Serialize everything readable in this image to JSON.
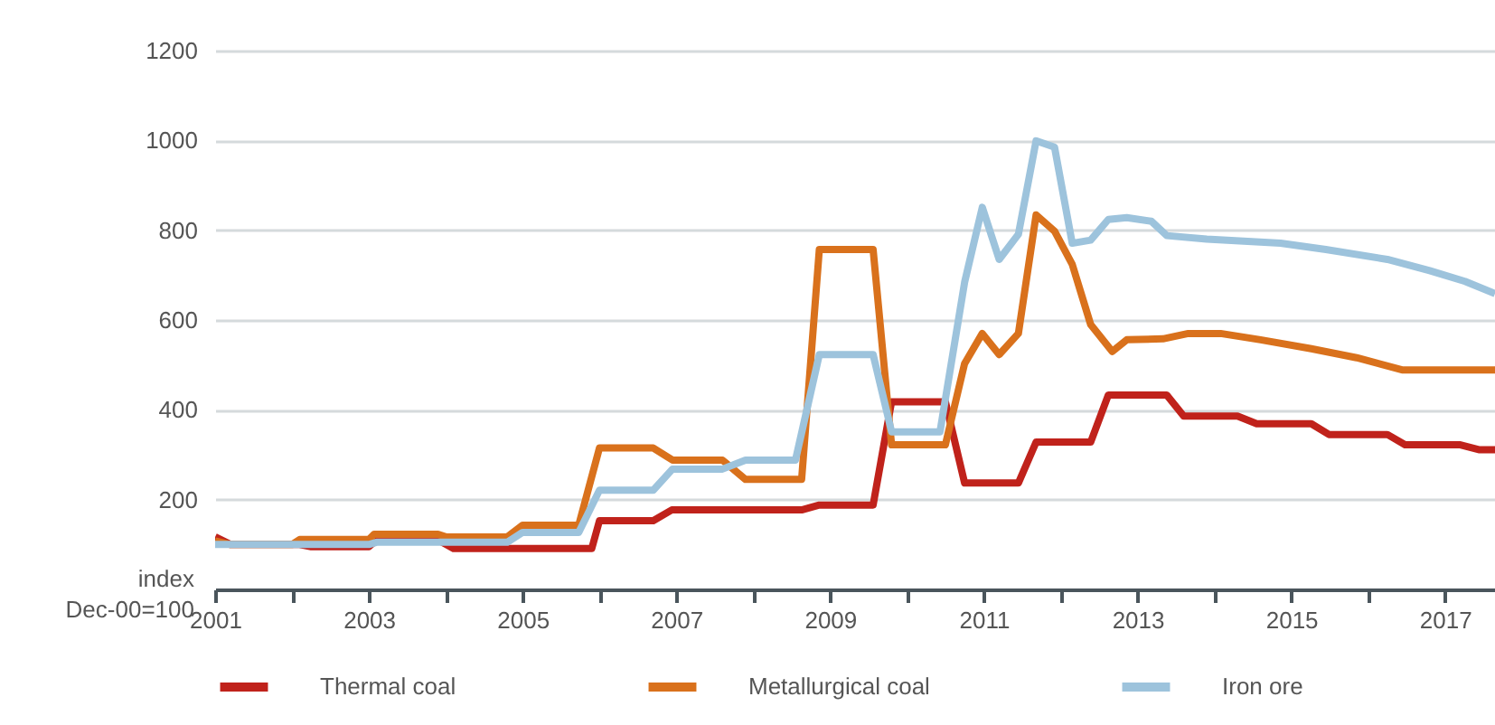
{
  "chart_data": {
    "type": "line",
    "ylabel": "index\nDec-00=100",
    "xlim": [
      2001,
      2017.65
    ],
    "ylim": [
      0,
      1200
    ],
    "xticks": [
      2001,
      {
        "value": 2002,
        "label": null
      },
      2003,
      {
        "value": 2004,
        "label": null
      },
      2005,
      {
        "value": 2006,
        "label": null
      },
      2007,
      {
        "value": 2008,
        "label": null
      },
      2009,
      {
        "value": 2010,
        "label": null
      },
      2011,
      {
        "value": 2012,
        "label": null
      },
      2013,
      {
        "value": 2014,
        "label": null
      },
      2015,
      {
        "value": 2016,
        "label": null
      },
      2017
    ],
    "yticks": [
      200,
      400,
      600,
      800,
      1000,
      1200
    ],
    "grid": "y",
    "legend": "bottom",
    "line_style": "solid",
    "marker": "none",
    "series": [
      {
        "name": "Thermal coal",
        "color": "#c0221b",
        "x": [
          2001,
          2001.2,
          2002.1,
          2002.25,
          2003,
          2003.1,
          2003.9,
          2004.1,
          2005.9,
          2006,
          2006.7,
          2006.94,
          2008.63,
          2008.86,
          2009.56,
          2009.8,
          2010.5,
          2010.75,
          2011.45,
          2011.68,
          2012.39,
          2012.62,
          2013.38,
          2013.6,
          2014.3,
          2014.55,
          2015.26,
          2015.49,
          2016.25,
          2016.48,
          2017.2,
          2017.45,
          2017.65
        ],
        "values": [
          117,
          100,
          100,
          95,
          95,
          110,
          110,
          91,
          91,
          153,
          153,
          177,
          177,
          188,
          188,
          418,
          418,
          237,
          237,
          328,
          328,
          433,
          433,
          386,
          386,
          369,
          369,
          345,
          345,
          322,
          322,
          311,
          311
        ]
      },
      {
        "name": "Metallurgical coal",
        "color": "#d9711c",
        "x": [
          2001,
          2001.2,
          2002,
          2002.1,
          2003,
          2003.07,
          2003.9,
          2004,
          2004.8,
          2005,
          2005.73,
          2006,
          2006.7,
          2006.95,
          2007.6,
          2007.9,
          2008.63,
          2008.86,
          2009.56,
          2009.8,
          2010.5,
          2010.75,
          2010.98,
          2011.2,
          2011.45,
          2011.68,
          2011.92,
          2012.15,
          2012.39,
          2012.67,
          2012.86,
          2013.33,
          2013.66,
          2014.08,
          2014.6,
          2015.26,
          2015.85,
          2016.44,
          2017.65
        ],
        "values": [
          108,
          100,
          100,
          111,
          111,
          123,
          123,
          117,
          117,
          143,
          143,
          315,
          315,
          288,
          288,
          245,
          245,
          757,
          757,
          322,
          322,
          503,
          570,
          523,
          570,
          834,
          798,
          724,
          590,
          530,
          556,
          558,
          570,
          570,
          556,
          536,
          516,
          489,
          489
        ]
      },
      {
        "name": "Iron ore",
        "color": "#9dc3dc",
        "x": [
          2001,
          2003,
          2003.1,
          2004.8,
          2005,
          2005.73,
          2006,
          2006.7,
          2006.95,
          2007.6,
          2007.9,
          2008.55,
          2008.86,
          2009.56,
          2009.8,
          2010.43,
          2010.75,
          2010.98,
          2011.2,
          2011.45,
          2011.68,
          2011.92,
          2012.15,
          2012.39,
          2012.62,
          2012.86,
          2013.18,
          2013.38,
          2013.9,
          2014.86,
          2015.45,
          2016.25,
          2016.8,
          2017.26,
          2017.65
        ],
        "values": [
          100,
          100,
          105,
          105,
          127,
          127,
          221,
          221,
          268,
          268,
          288,
          288,
          523,
          523,
          351,
          351,
          684,
          851,
          735,
          791,
          999,
          985,
          771,
          778,
          824,
          828,
          820,
          788,
          780,
          771,
          757,
          735,
          710,
          686,
          659
        ]
      }
    ]
  }
}
